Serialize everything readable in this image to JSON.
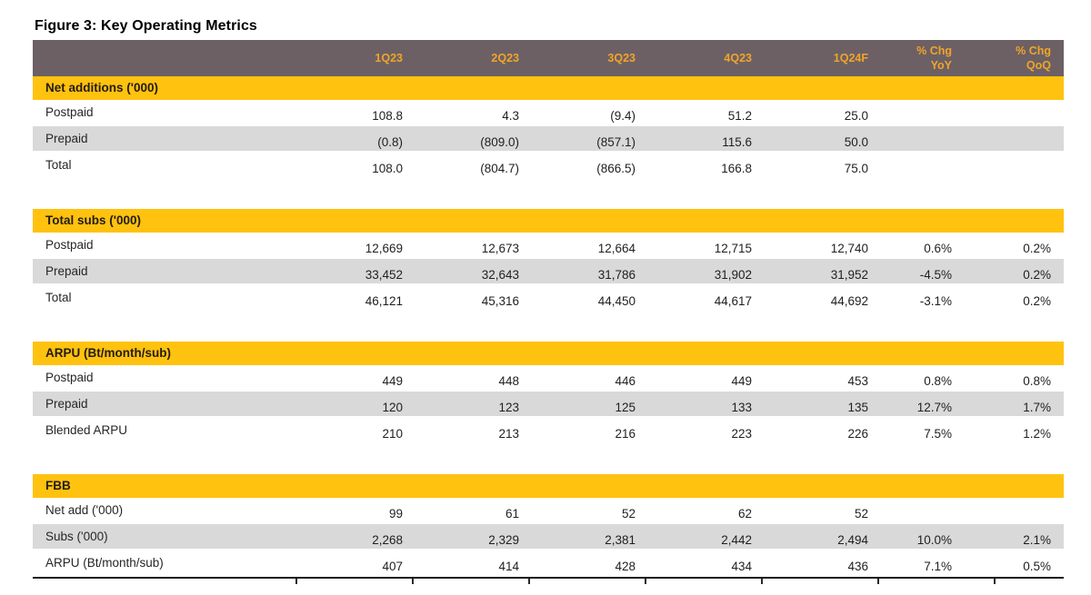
{
  "title": "Figure 3: Key Operating Metrics",
  "colors": {
    "header_bg": "#6c6064",
    "header_text": "#f1a42a",
    "section_bg": "#ffc20e",
    "section_text": "#221c15",
    "row_alt_bg": "#d9d9d9",
    "text": "#1f1f1f",
    "rule": "#1a1a1a"
  },
  "table": {
    "columns": [
      "",
      "1Q23",
      "2Q23",
      "3Q23",
      "4Q23",
      "1Q24F",
      "% Chg\nYoY",
      "% Chg\nQoQ"
    ],
    "sections": [
      {
        "header": "Net additions ('000)",
        "rows": [
          {
            "label": "Postpaid",
            "values": [
              "108.8",
              "4.3",
              "(9.4)",
              "51.2",
              "25.0",
              "",
              ""
            ]
          },
          {
            "label": "Prepaid",
            "values": [
              "(0.8)",
              "(809.0)",
              "(857.1)",
              "115.6",
              "50.0",
              "",
              ""
            ]
          },
          {
            "label": "Total",
            "values": [
              "108.0",
              "(804.7)",
              "(866.5)",
              "166.8",
              "75.0",
              "",
              ""
            ]
          }
        ]
      },
      {
        "header": "Total subs ('000)",
        "rows": [
          {
            "label": "Postpaid",
            "values": [
              "12,669",
              "12,673",
              "12,664",
              "12,715",
              "12,740",
              "0.6%",
              "0.2%"
            ]
          },
          {
            "label": "Prepaid",
            "values": [
              "33,452",
              "32,643",
              "31,786",
              "31,902",
              "31,952",
              "-4.5%",
              "0.2%"
            ]
          },
          {
            "label": "Total",
            "values": [
              "46,121",
              "45,316",
              "44,450",
              "44,617",
              "44,692",
              "-3.1%",
              "0.2%"
            ]
          }
        ]
      },
      {
        "header": "ARPU (Bt/month/sub)",
        "rows": [
          {
            "label": "Postpaid",
            "values": [
              "449",
              "448",
              "446",
              "449",
              "453",
              "0.8%",
              "0.8%"
            ]
          },
          {
            "label": "Prepaid",
            "values": [
              "120",
              "123",
              "125",
              "133",
              "135",
              "12.7%",
              "1.7%"
            ]
          },
          {
            "label": "Blended ARPU",
            "values": [
              "210",
              "213",
              "216",
              "223",
              "226",
              "7.5%",
              "1.2%"
            ]
          }
        ]
      },
      {
        "header": "FBB",
        "rows": [
          {
            "label": "Net add ('000)",
            "values": [
              "99",
              "61",
              "52",
              "62",
              "52",
              "",
              ""
            ]
          },
          {
            "label": "Subs ('000)",
            "values": [
              "2,268",
              "2,329",
              "2,381",
              "2,442",
              "2,494",
              "10.0%",
              "2.1%"
            ]
          },
          {
            "label": "ARPU (Bt/month/sub)",
            "values": [
              "407",
              "414",
              "428",
              "434",
              "436",
              "7.1%",
              "0.5%"
            ]
          }
        ]
      }
    ]
  }
}
